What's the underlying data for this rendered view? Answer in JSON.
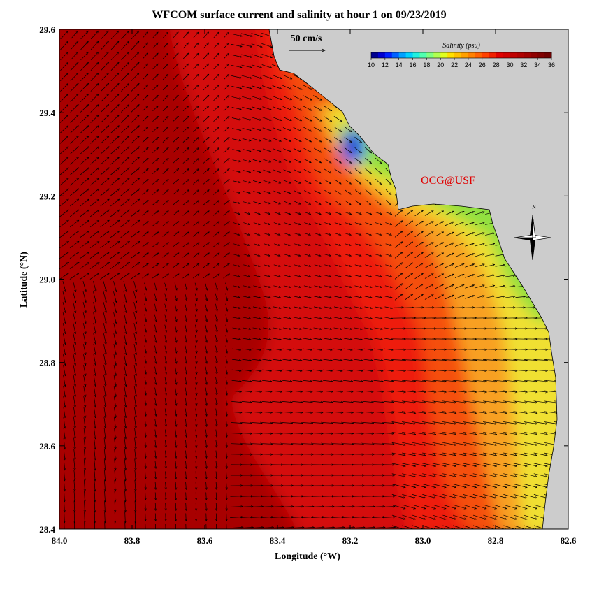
{
  "title": "WFCOM surface current and salinity at hour 1 on 09/23/2019",
  "x_axis": {
    "label": "Longitude (°W)",
    "ticks": [
      {
        "value": 84.0,
        "label": "84.0"
      },
      {
        "value": 83.8,
        "label": "83.8"
      },
      {
        "value": 83.6,
        "label": "83.6"
      },
      {
        "value": 83.4,
        "label": "83.4"
      },
      {
        "value": 83.2,
        "label": "83.2"
      },
      {
        "value": 83.0,
        "label": "83.0"
      },
      {
        "value": 82.8,
        "label": "82.8"
      },
      {
        "value": 82.6,
        "label": "82.6"
      }
    ]
  },
  "y_axis": {
    "label": "Latitude (°N)",
    "ticks": [
      {
        "value": 28.4,
        "label": "28.4"
      },
      {
        "value": 28.6,
        "label": "28.6"
      },
      {
        "value": 28.8,
        "label": "28.8"
      },
      {
        "value": 29.0,
        "label": "29.0"
      },
      {
        "value": 29.2,
        "label": "29.2"
      },
      {
        "value": 29.4,
        "label": "29.4"
      },
      {
        "value": 29.6,
        "label": "29.6"
      }
    ]
  },
  "scale_label": "50 cm/s",
  "colorbar": {
    "title": "Salinity (psu)",
    "ticks": [
      10,
      12,
      14,
      16,
      18,
      20,
      22,
      24,
      26,
      28,
      30,
      32,
      34,
      36
    ]
  },
  "credit": "OCG@USF",
  "compass_label": "N"
}
